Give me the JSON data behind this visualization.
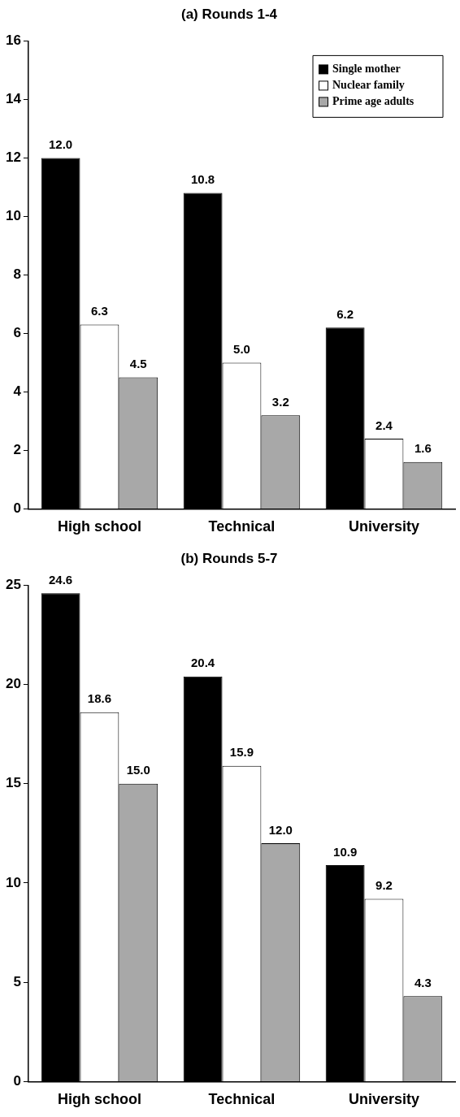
{
  "chart_data": [
    {
      "type": "bar",
      "title": "(a) Rounds 1-4",
      "categories": [
        "High school",
        "Technical",
        "University"
      ],
      "series": [
        {
          "name": "Single mother",
          "color": "#000000",
          "values": [
            12.0,
            10.8,
            6.2
          ],
          "value_labels": [
            "12.0",
            "10.8",
            "6.2"
          ]
        },
        {
          "name": "Nuclear family",
          "color": "#ffffff",
          "values": [
            6.3,
            5.0,
            2.4
          ],
          "value_labels": [
            "6.3",
            "5.0",
            "2.4"
          ]
        },
        {
          "name": "Prime age adults",
          "color": "#a8a8a8",
          "values": [
            4.5,
            3.2,
            1.6
          ],
          "value_labels": [
            "4.5",
            "3.2",
            "1.6"
          ]
        }
      ],
      "ylim": [
        0,
        16
      ],
      "yticks": [
        0,
        2,
        4,
        6,
        8,
        10,
        12,
        14,
        16
      ],
      "grid": false,
      "legend": "top right"
    },
    {
      "type": "bar",
      "title": "(b) Rounds 5-7",
      "categories": [
        "High school",
        "Technical",
        "University"
      ],
      "series": [
        {
          "color": "#000000",
          "values": [
            24.6,
            20.4,
            10.9
          ],
          "value_labels": [
            "24.6",
            "20.4",
            "10.9"
          ]
        },
        {
          "color": "#ffffff",
          "values": [
            18.6,
            15.9,
            9.2
          ],
          "value_labels": [
            "18.6",
            "15.9",
            "9.2"
          ]
        },
        {
          "color": "#a8a8a8",
          "values": [
            15.0,
            12.0,
            4.3
          ],
          "value_labels": [
            "15.0",
            "12.0",
            "4.3"
          ]
        }
      ],
      "ylim": [
        0,
        25
      ],
      "yticks": [
        0,
        5,
        10,
        15,
        20,
        25
      ],
      "grid": false,
      "legend": false
    }
  ]
}
